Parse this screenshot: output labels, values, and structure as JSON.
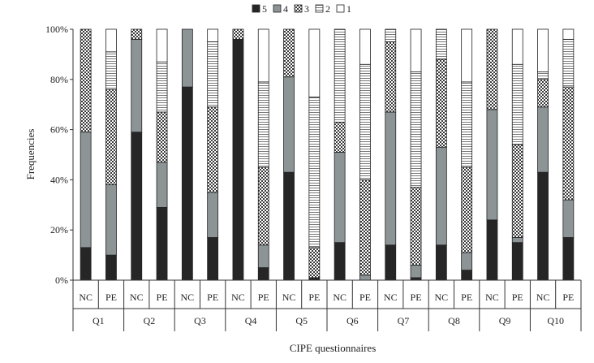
{
  "chart_data": {
    "type": "bar",
    "stacked": true,
    "normalized": true,
    "title": "",
    "xlabel": "CIPE questionnaires",
    "ylabel": "Frequencies",
    "ylim": [
      0,
      100
    ],
    "y_ticks": [
      "0%",
      "20%",
      "40%",
      "60%",
      "80%",
      "100%"
    ],
    "legend_position": "top",
    "legend": [
      "5",
      "4",
      "3",
      "2",
      "1"
    ],
    "groups": [
      "Q1",
      "Q2",
      "Q3",
      "Q4",
      "Q5",
      "Q6",
      "Q7",
      "Q8",
      "Q9",
      "Q10"
    ],
    "subcategories": [
      "NC",
      "PE"
    ],
    "categories": [
      "Q1 NC",
      "Q1 PE",
      "Q2 NC",
      "Q2 PE",
      "Q3 NC",
      "Q3 PE",
      "Q4 NC",
      "Q4 PE",
      "Q5 NC",
      "Q5 PE",
      "Q6 NC",
      "Q6 PE",
      "Q7 NC",
      "Q7 PE",
      "Q8 NC",
      "Q8 PE",
      "Q9 NC",
      "Q9 PE",
      "Q10 NC",
      "Q10 PE"
    ],
    "series": [
      {
        "name": "5",
        "color": "#262626",
        "pattern": "solid-dark",
        "values": [
          13,
          10,
          59,
          29,
          77,
          17,
          96,
          5,
          43,
          1,
          15,
          0,
          14,
          1,
          14,
          4,
          24,
          15,
          43,
          17
        ]
      },
      {
        "name": "4",
        "color": "#8c9496",
        "pattern": "solid-gray",
        "values": [
          46,
          28,
          37,
          18,
          23,
          18,
          0,
          9,
          38,
          0,
          36,
          2,
          53,
          5,
          39,
          7,
          44,
          2,
          26,
          15
        ]
      },
      {
        "name": "3",
        "color": "#cccccc",
        "pattern": "checker",
        "values": [
          41,
          38,
          4,
          20,
          0,
          34,
          4,
          31,
          19,
          12,
          12,
          38,
          28,
          31,
          35,
          34,
          32,
          37,
          11,
          45
        ]
      },
      {
        "name": "2",
        "color": "#e8e8e8",
        "pattern": "horizontal-lines",
        "values": [
          0,
          15,
          0,
          20,
          0,
          26,
          0,
          34,
          0,
          60,
          37,
          46,
          5,
          46,
          12,
          34,
          0,
          32,
          3,
          19
        ]
      },
      {
        "name": "1",
        "color": "#ffffff",
        "pattern": "white",
        "values": [
          0,
          9,
          0,
          13,
          0,
          5,
          0,
          21,
          0,
          27,
          0,
          14,
          0,
          17,
          0,
          21,
          0,
          14,
          17,
          4
        ]
      }
    ]
  }
}
